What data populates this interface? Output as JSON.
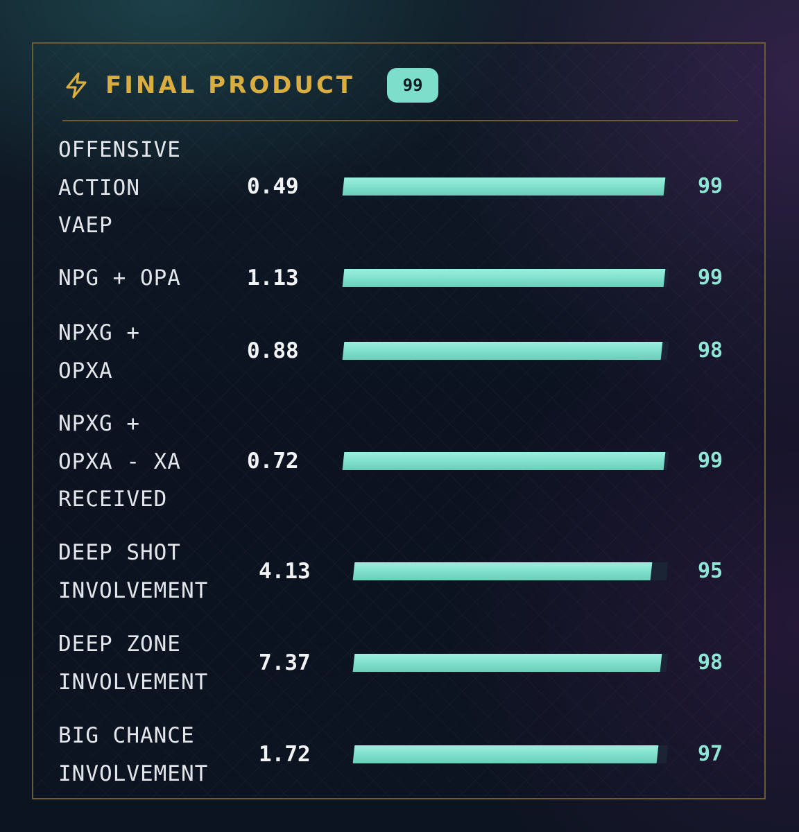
{
  "header": {
    "icon": "lightning-bolt-icon",
    "title": "FINAL PRODUCT",
    "score": "99"
  },
  "colors": {
    "accent_gold": "#d9ad3f",
    "bar_teal": "#7ddfcb",
    "percentile_teal": "#8fe6d4",
    "border_gold": "#6d5a32"
  },
  "metrics": [
    {
      "label": "OFFENSIVE\nACTION\nVAEP",
      "value": "0.49",
      "percentile": "99"
    },
    {
      "label": "NPG + OPA",
      "value": "1.13",
      "percentile": "99"
    },
    {
      "label": "NPXG +\nOPXA",
      "value": "0.88",
      "percentile": "98"
    },
    {
      "label": "NPXG +\nOPXA - XA\nRECEIVED",
      "value": "0.72",
      "percentile": "99"
    },
    {
      "label": "DEEP SHOT\nINVOLVEMENT",
      "value": "4.13",
      "percentile": "95"
    },
    {
      "label": "DEEP ZONE\nINVOLVEMENT",
      "value": "7.37",
      "percentile": "98"
    },
    {
      "label": "BIG CHANCE\nINVOLVEMENT",
      "value": "1.72",
      "percentile": "97"
    }
  ]
}
